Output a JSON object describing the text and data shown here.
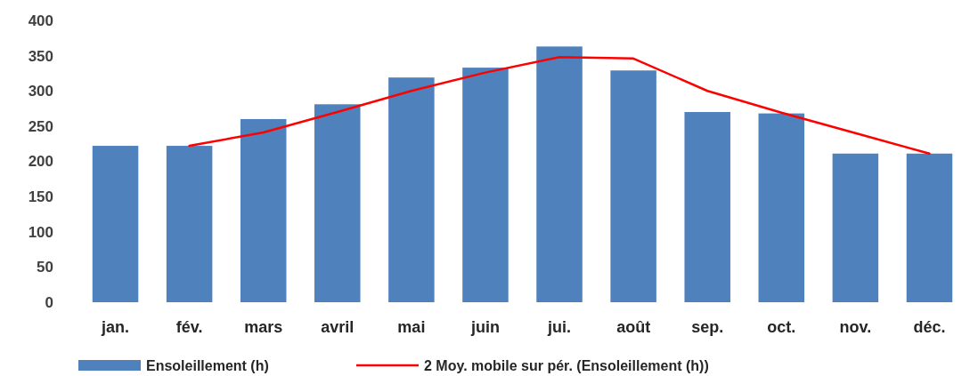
{
  "chart_data": {
    "type": "bar",
    "categories": [
      "jan.",
      "fév.",
      "mars",
      "avril",
      "mai",
      "juin",
      "jui.",
      "août",
      "sep.",
      "oct.",
      "nov.",
      "déc."
    ],
    "series": [
      {
        "name": "Ensoleillement (h)",
        "color": "#4f81bd",
        "values": [
          222,
          222,
          260,
          281,
          319,
          333,
          363,
          329,
          270,
          268,
          211,
          211
        ]
      },
      {
        "name": "2 Moy. mobile sur pér. (Ensoleillement (h))",
        "type": "line",
        "color": "#ff0000",
        "values": [
          null,
          222,
          241,
          270,
          300,
          326,
          348,
          346,
          300,
          269,
          240,
          211
        ]
      }
    ],
    "ylim": [
      0,
      400
    ],
    "yticks": [
      0,
      50,
      100,
      150,
      200,
      250,
      300,
      350,
      400
    ],
    "grid": false,
    "legend": "bottom"
  }
}
